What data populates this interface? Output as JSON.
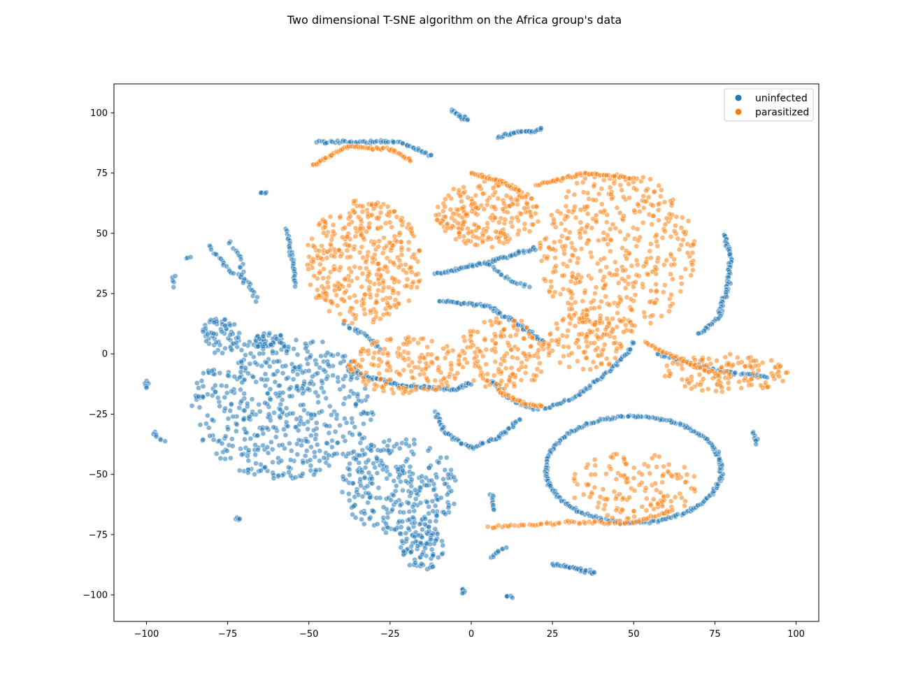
{
  "chart_data": {
    "type": "scatter",
    "title": "Two dimensional T-SNE algorithm on the Africa group's data",
    "xlabel": "",
    "ylabel": "",
    "xlim": [
      -110,
      107
    ],
    "ylim": [
      -111,
      112
    ],
    "xticks": [
      -100,
      -75,
      -50,
      -25,
      0,
      25,
      50,
      75,
      100
    ],
    "yticks": [
      -100,
      -75,
      -50,
      -25,
      0,
      25,
      50,
      75,
      100
    ],
    "xtick_labels": [
      "−100",
      "−75",
      "−50",
      "−25",
      "0",
      "25",
      "50",
      "75",
      "100"
    ],
    "ytick_labels": [
      "−100",
      "−75",
      "−50",
      "−25",
      "0",
      "25",
      "50",
      "75",
      "100"
    ],
    "grid": false,
    "legend_position": "top-right",
    "series": [
      {
        "name": "uninfected",
        "color": "#1f77b4",
        "clusters": [
          {
            "shape": "blob",
            "cx": -58,
            "cy": -22,
            "rx": 28,
            "ry": 30,
            "n": 520
          },
          {
            "shape": "blob",
            "cx": -22,
            "cy": -55,
            "rx": 18,
            "ry": 20,
            "n": 280
          },
          {
            "shape": "blob",
            "cx": -15,
            "cy": -80,
            "rx": 7,
            "ry": 10,
            "n": 90
          },
          {
            "shape": "blob",
            "cx": -77,
            "cy": 8,
            "rx": 6,
            "ry": 8,
            "n": 60
          },
          {
            "shape": "blob",
            "cx": -62,
            "cy": 5,
            "rx": 5,
            "ry": 4,
            "n": 40
          },
          {
            "shape": "arc",
            "cx": 50,
            "cy": -48,
            "rx": 27,
            "ry": 22,
            "a0": -170,
            "a1": 200,
            "n": 260
          },
          {
            "shape": "line",
            "points": [
              [
                -38,
                -7
              ],
              [
                -22,
                -13
              ],
              [
                -5,
                -15
              ],
              [
                0,
                -12
              ]
            ],
            "n": 90
          },
          {
            "shape": "line",
            "points": [
              [
                -10,
                22
              ],
              [
                5,
                20
              ],
              [
                15,
                12
              ],
              [
                22,
                5
              ]
            ],
            "n": 70
          },
          {
            "shape": "line",
            "points": [
              [
                -11,
                33
              ],
              [
                5,
                38
              ],
              [
                20,
                44
              ]
            ],
            "n": 70
          },
          {
            "shape": "line",
            "points": [
              [
                -11,
                -24
              ],
              [
                -8,
                -33
              ],
              [
                0,
                -39
              ],
              [
                8,
                -35
              ],
              [
                15,
                -27
              ]
            ],
            "n": 70
          },
          {
            "shape": "line",
            "points": [
              [
                6,
                -11
              ],
              [
                12,
                -19
              ],
              [
                20,
                -23
              ]
            ],
            "n": 40
          },
          {
            "shape": "line",
            "points": [
              [
                -48,
                88
              ],
              [
                -35,
                88
              ],
              [
                -22,
                88
              ],
              [
                -12,
                82
              ]
            ],
            "n": 60
          },
          {
            "shape": "line",
            "points": [
              [
                78,
                50
              ],
              [
                80,
                40
              ],
              [
                79,
                28
              ],
              [
                76,
                15
              ],
              [
                72,
                10
              ],
              [
                70,
                8
              ]
            ],
            "n": 80
          },
          {
            "shape": "line",
            "points": [
              [
                57,
                0
              ],
              [
                70,
                -5
              ],
              [
                82,
                -8
              ],
              [
                92,
                -10
              ]
            ],
            "n": 50
          },
          {
            "shape": "line",
            "points": [
              [
                22,
                -23
              ],
              [
                32,
                -18
              ],
              [
                40,
                -10
              ],
              [
                48,
                0
              ],
              [
                50,
                5
              ]
            ],
            "n": 60
          },
          {
            "shape": "line",
            "points": [
              [
                -81,
                45
              ],
              [
                -75,
                35
              ],
              [
                -69,
                30
              ],
              [
                -66,
                22
              ]
            ],
            "n": 30
          },
          {
            "shape": "line",
            "points": [
              [
                -75,
                47
              ],
              [
                -71,
                40
              ],
              [
                -70,
                30
              ]
            ],
            "n": 15
          },
          {
            "shape": "line",
            "points": [
              [
                -57,
                52
              ],
              [
                -55,
                40
              ],
              [
                -54,
                28
              ]
            ],
            "n": 30
          },
          {
            "shape": "line",
            "points": [
              [
                8,
                90
              ],
              [
                15,
                92
              ],
              [
                22,
                93
              ]
            ],
            "n": 30
          },
          {
            "shape": "line",
            "points": [
              [
                -6,
                101
              ],
              [
                -3,
                98
              ],
              [
                -1,
                97
              ]
            ],
            "n": 18
          },
          {
            "shape": "line",
            "points": [
              [
                -100,
                -11
              ],
              [
                -100,
                -14
              ]
            ],
            "n": 6
          },
          {
            "shape": "line",
            "points": [
              [
                -98,
                -32
              ],
              [
                -97,
                -35
              ],
              [
                -94,
                -36
              ]
            ],
            "n": 7
          },
          {
            "shape": "line",
            "points": [
              [
                -92,
                27
              ],
              [
                -91,
                34
              ]
            ],
            "n": 5
          },
          {
            "shape": "line",
            "points": [
              [
                -88,
                40
              ],
              [
                -86,
                40
              ]
            ],
            "n": 3
          },
          {
            "shape": "line",
            "points": [
              [
                -65,
                67
              ],
              [
                -63,
                67
              ]
            ],
            "n": 5
          },
          {
            "shape": "line",
            "points": [
              [
                25,
                -87
              ],
              [
                32,
                -89
              ],
              [
                38,
                -91
              ]
            ],
            "n": 40
          },
          {
            "shape": "line",
            "points": [
              [
                -73,
                -68
              ],
              [
                -71,
                -69
              ]
            ],
            "n": 5
          },
          {
            "shape": "line",
            "points": [
              [
                6,
                -58
              ],
              [
                7,
                -65
              ]
            ],
            "n": 12
          },
          {
            "shape": "line",
            "points": [
              [
                6,
                -85
              ],
              [
                8,
                -82
              ],
              [
                11,
                -80
              ]
            ],
            "n": 10
          },
          {
            "shape": "line",
            "points": [
              [
                -2,
                -97
              ],
              [
                -3,
                -100
              ]
            ],
            "n": 6
          },
          {
            "shape": "line",
            "points": [
              [
                10,
                -100
              ],
              [
                13,
                -101
              ]
            ],
            "n": 5
          },
          {
            "shape": "line",
            "points": [
              [
                87,
                -32
              ],
              [
                88,
                -38
              ]
            ],
            "n": 8
          },
          {
            "shape": "line",
            "points": [
              [
                5,
                38
              ],
              [
                12,
                30
              ],
              [
                18,
                28
              ]
            ],
            "n": 20
          },
          {
            "shape": "line",
            "points": [
              [
                -40,
                13
              ],
              [
                -33,
                8
              ],
              [
                -28,
                2
              ]
            ],
            "n": 20
          }
        ]
      },
      {
        "name": "parasitized",
        "color": "#ff7f0e",
        "clusters": [
          {
            "shape": "blob",
            "cx": -33,
            "cy": 38,
            "rx": 18,
            "ry": 26,
            "n": 380
          },
          {
            "shape": "blob",
            "cx": -20,
            "cy": -5,
            "rx": 18,
            "ry": 12,
            "n": 170
          },
          {
            "shape": "blob",
            "cx": 5,
            "cy": 58,
            "rx": 16,
            "ry": 14,
            "n": 220
          },
          {
            "shape": "blob",
            "cx": 10,
            "cy": 0,
            "rx": 14,
            "ry": 15,
            "n": 150
          },
          {
            "shape": "blob",
            "cx": 45,
            "cy": 42,
            "rx": 24,
            "ry": 34,
            "n": 420
          },
          {
            "shape": "blob",
            "cx": 35,
            "cy": 5,
            "rx": 12,
            "ry": 12,
            "n": 110
          },
          {
            "shape": "blob",
            "cx": 78,
            "cy": -8,
            "rx": 20,
            "ry": 8,
            "n": 130
          },
          {
            "shape": "blob",
            "cx": 50,
            "cy": -55,
            "rx": 20,
            "ry": 14,
            "n": 140
          },
          {
            "shape": "line",
            "points": [
              [
                -49,
                78
              ],
              [
                -38,
                86
              ],
              [
                -25,
                85
              ],
              [
                -18,
                80
              ]
            ],
            "n": 70
          },
          {
            "shape": "line",
            "points": [
              [
                0,
                75
              ],
              [
                8,
                72
              ],
              [
                15,
                68
              ]
            ],
            "n": 50
          },
          {
            "shape": "line",
            "points": [
              [
                20,
                70
              ],
              [
                35,
                75
              ],
              [
                50,
                73
              ]
            ],
            "n": 60
          },
          {
            "shape": "line",
            "points": [
              [
                8,
                -15
              ],
              [
                15,
                -20
              ],
              [
                22,
                -22
              ]
            ],
            "n": 40
          },
          {
            "shape": "line",
            "points": [
              [
                5,
                -72
              ],
              [
                30,
                -70
              ],
              [
                50,
                -70
              ],
              [
                62,
                -65
              ]
            ],
            "n": 70
          },
          {
            "shape": "line",
            "points": [
              [
                53,
                5
              ],
              [
                65,
                -3
              ],
              [
                75,
                -8
              ]
            ],
            "n": 40
          }
        ]
      }
    ]
  }
}
